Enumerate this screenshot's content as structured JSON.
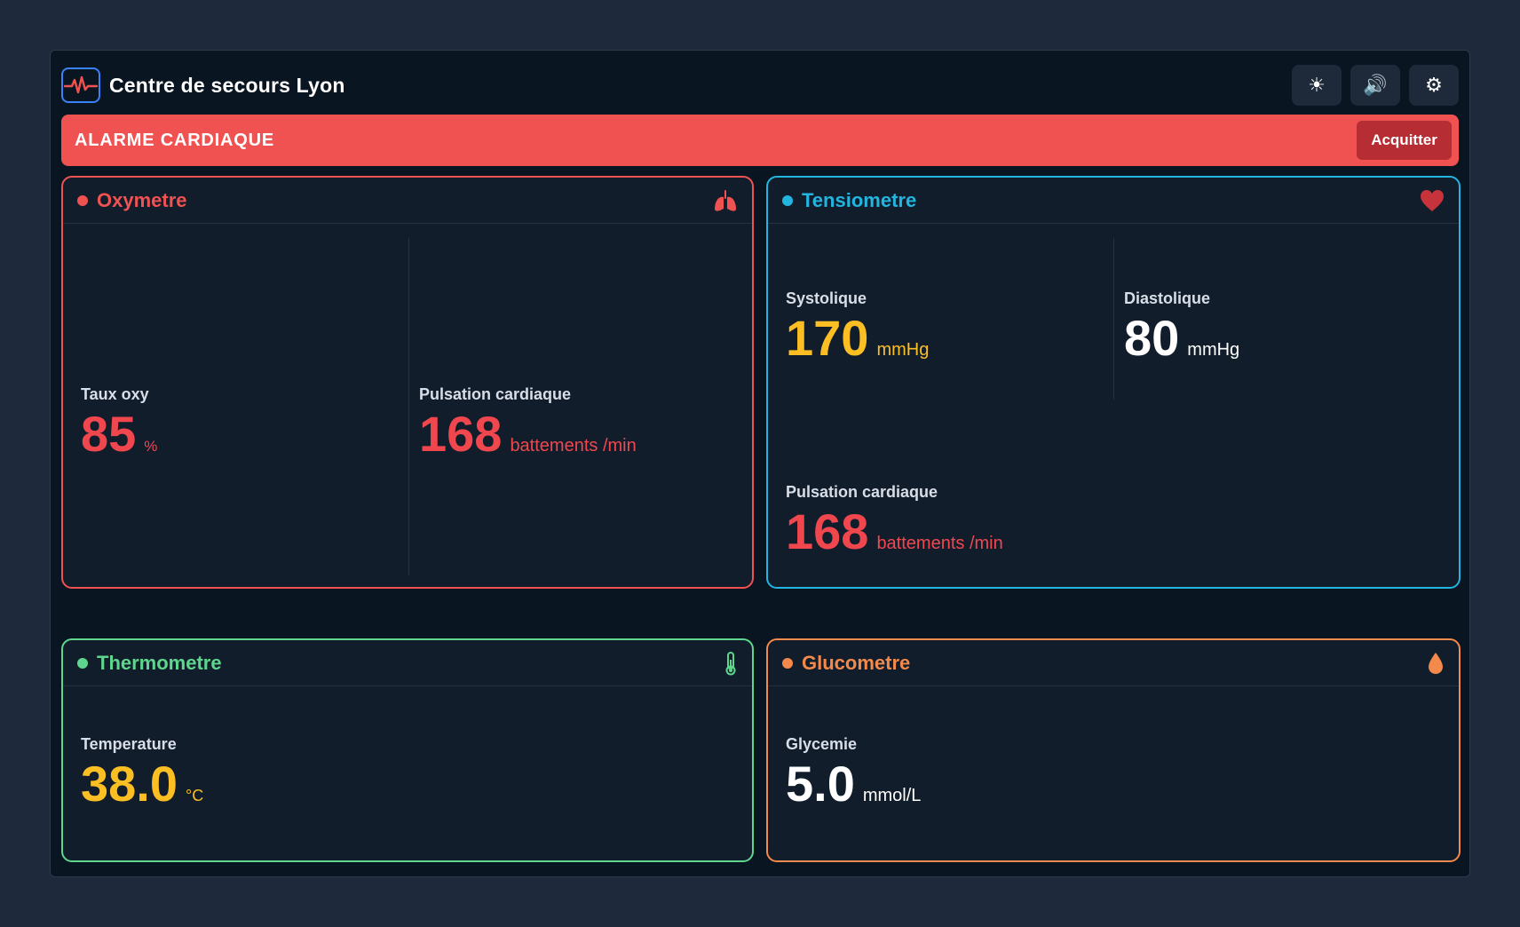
{
  "header": {
    "title": "Centre de secours Lyon",
    "actions": [
      {
        "name": "brightness-icon",
        "glyph": "☀"
      },
      {
        "name": "speaker-icon",
        "glyph": "🔊"
      },
      {
        "name": "gear-icon",
        "glyph": "⚙"
      }
    ]
  },
  "alarm": {
    "text": "ALARME CARDIAQUE",
    "ack_label": "Acquitter",
    "color": "#f05252"
  },
  "cards": {
    "oxymetre": {
      "title": "Oxymetre",
      "color": "#f05252",
      "icon": "lungs-icon",
      "metrics": [
        {
          "label": "Taux oxy",
          "value": "85",
          "unit": "%"
        },
        {
          "label": "Pulsation cardiaque",
          "value": "168",
          "unit": "battements /min"
        }
      ]
    },
    "tensiometre": {
      "title": "Tensiometre",
      "color": "#22b5e0",
      "icon": "heart-icon",
      "metrics": [
        {
          "label": "Systolique",
          "value": "170",
          "unit": "mmHg"
        },
        {
          "label": "Diastolique",
          "value": "80",
          "unit": "mmHg"
        },
        {
          "label": "Pulsation cardiaque",
          "value": "168",
          "unit": "battements /min"
        }
      ]
    },
    "thermometre": {
      "title": "Thermometre",
      "color": "#5fd68d",
      "icon": "thermometer-icon",
      "metrics": [
        {
          "label": "Temperature",
          "value": "38.0",
          "unit": "°C"
        }
      ]
    },
    "glucometre": {
      "title": "Glucometre",
      "color": "#f3894a",
      "icon": "drop-icon",
      "metrics": [
        {
          "label": "Glycemie",
          "value": "5.0",
          "unit": "mmol/L"
        }
      ]
    }
  }
}
